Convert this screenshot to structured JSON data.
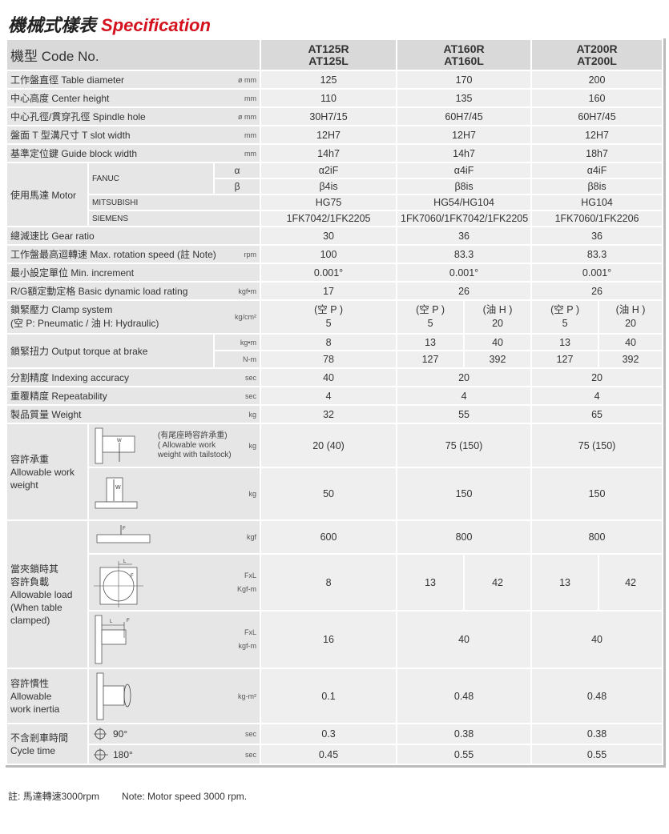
{
  "title": {
    "zh": "機械式樣表",
    "en": "Specification"
  },
  "header": {
    "label": "機型 Code No.",
    "models": [
      [
        "AT125R",
        "AT125L"
      ],
      [
        "AT160R",
        "AT160L"
      ],
      [
        "AT200R",
        "AT200L"
      ]
    ]
  },
  "rows": {
    "table_diameter": {
      "label": "工作盤直徑 Table diameter",
      "unit": "ø mm",
      "values": [
        "125",
        "170",
        "200"
      ]
    },
    "center_height": {
      "label": "中心高度 Center height",
      "unit": "mm",
      "values": [
        "110",
        "135",
        "160"
      ]
    },
    "spindle_hole": {
      "label": "中心孔徑/貫穿孔徑 Spindle hole",
      "unit": "ø mm",
      "values": [
        "30H7/15",
        "60H7/45",
        "60H7/45"
      ]
    },
    "t_slot": {
      "label": "盤面 T 型溝尺寸 T slot width",
      "unit": "mm",
      "values": [
        "12H7",
        "12H7",
        "12H7"
      ]
    },
    "guide_block": {
      "label": "基準定位鍵 Guide block width",
      "unit": "mm",
      "values": [
        "14h7",
        "14h7",
        "18h7"
      ]
    },
    "motor": {
      "label": "使用馬達 Motor",
      "fanuc": "FANUC",
      "alpha": "α",
      "beta": "β",
      "mitsubishi": "MITSUBISHI",
      "siemens": "SIEMENS",
      "alpha_values": [
        "α2iF",
        "α4iF",
        "α4iF"
      ],
      "beta_values": [
        "β4is",
        "β8is",
        "β8is"
      ],
      "mitsubishi_values": [
        "HG75",
        "HG54/HG104",
        "HG104"
      ],
      "siemens_values": [
        "1FK7042/1FK2205",
        "1FK7060/1FK7042/1FK2205",
        "1FK7060/1FK2206"
      ]
    },
    "gear_ratio": {
      "label": "總減速比 Gear ratio",
      "unit": "",
      "values": [
        "30",
        "36",
        "36"
      ]
    },
    "max_speed": {
      "label": "工作盤最高迴轉速 Max. rotation speed (註 Note)",
      "unit": "rpm",
      "values": [
        "100",
        "83.3",
        "83.3"
      ]
    },
    "min_increment": {
      "label": "最小設定單位 Min. increment",
      "unit": "",
      "values": [
        "0.001°",
        "0.001°",
        "0.001°"
      ]
    },
    "load_rating": {
      "label": "R/G額定動定格 Basic dynamic load rating",
      "unit": "kgf•m",
      "values": [
        "17",
        "26",
        "26"
      ]
    },
    "clamp": {
      "label1": "鎖緊壓力  Clamp system",
      "label2": "(空 P: Pneumatic / 油 H: Hydraulic)",
      "unit": "kg/cm²",
      "values": [
        [
          "(空 P )",
          "5"
        ],
        [
          "(空 P )",
          "5"
        ],
        [
          "(油 H )",
          "20"
        ],
        [
          "(空 P )",
          "5"
        ],
        [
          "(油 H )",
          "20"
        ]
      ]
    },
    "torque": {
      "label": "鎖緊扭力 Output torque at brake",
      "unit1": "kg•m",
      "unit2": "N-m",
      "values1": [
        "8",
        "13",
        "40",
        "13",
        "40"
      ],
      "values2": [
        "78",
        "127",
        "392",
        "127",
        "392"
      ]
    },
    "indexing": {
      "label": "分割精度 Indexing accuracy",
      "unit": "sec",
      "values": [
        "40",
        "20",
        "20"
      ]
    },
    "repeatability": {
      "label": "重覆精度 Repeatability",
      "unit": "sec",
      "values": [
        "4",
        "4",
        "4"
      ]
    },
    "weight": {
      "label": "製品質量 Weight",
      "unit": "kg",
      "values": [
        "32",
        "55",
        "65"
      ]
    },
    "work_weight": {
      "label_zh": "容許承重",
      "label_en": "Allowable work weight",
      "tailstock": {
        "zh": "(有尾座時容許承重)",
        "en1": "( Allowable work",
        "en2": "weight with tailstock)",
        "unit": "kg",
        "values": [
          "20 (40)",
          "75 (150)",
          "75 (150)"
        ],
        "w": "W"
      },
      "vertical": {
        "unit": "kg",
        "values": [
          "50",
          "150",
          "150"
        ],
        "w": "W"
      }
    },
    "allowable_load": {
      "label_zh1": "當夾鎖時其",
      "label_zh2": "容許負載",
      "label_en1": "Allowable load",
      "label_en2": "(When table",
      "label_en3": "clamped)",
      "axial": {
        "unit": "kgf",
        "values": [
          "600",
          "800",
          "800"
        ],
        "f": "F"
      },
      "tangential": {
        "unit1": "FxL",
        "unit2": "Kgf-m",
        "values": [
          "8",
          "13",
          "42",
          "13",
          "42"
        ],
        "l": "L",
        "f": "F"
      },
      "overhang": {
        "unit1": "FxL",
        "unit2": "kgf-m",
        "values": [
          "16",
          "40",
          "40"
        ],
        "l": "L",
        "f": "F"
      }
    },
    "inertia": {
      "label_zh": "容許慣性",
      "label_en1": "Allowable",
      "label_en2": "work inertia",
      "unit": "kg-m²",
      "values": [
        "0.1",
        "0.48",
        "0.48"
      ]
    },
    "cycle": {
      "label_zh": "不含剎車時間",
      "label_en": "Cycle time",
      "deg90": "90°",
      "deg180": "180°",
      "unit": "sec",
      "values90": [
        "0.3",
        "0.38",
        "0.38"
      ],
      "values180": [
        "0.45",
        "0.55",
        "0.55"
      ]
    }
  },
  "note": {
    "zh": "註: 馬達轉速3000rpm",
    "en": "Note: Motor speed 3000 rpm."
  }
}
